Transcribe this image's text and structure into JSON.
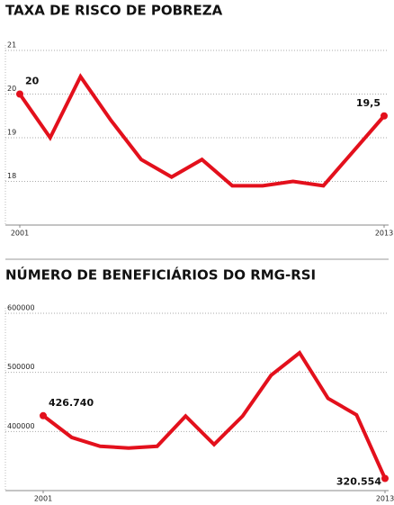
{
  "chart_data": [
    {
      "type": "line",
      "title": "TAXA DE RISCO DE POBREZA",
      "x": [
        2001,
        2002,
        2003,
        2004,
        2005,
        2006,
        2007,
        2008,
        2009,
        2010,
        2011,
        2012,
        2013
      ],
      "series": [
        {
          "name": null,
          "color": "#e3101c",
          "values": [
            20,
            19,
            20.4,
            19.4,
            18.5,
            18.1,
            18.5,
            17.9,
            17.9,
            18.0,
            17.9,
            18.7,
            19.5
          ],
          "value_labels": [
            "20",
            null,
            null,
            null,
            null,
            null,
            null,
            null,
            null,
            null,
            null,
            null,
            "19,5"
          ]
        }
      ],
      "xlim": [
        2001,
        2013
      ],
      "xticks": [
        2001,
        2013
      ],
      "ylim": [
        17,
        21
      ],
      "yticks": [
        18,
        19,
        20,
        21
      ],
      "grid": true
    },
    {
      "type": "line",
      "title": "NÚMERO DE BENEFICIÁRIOS DO RMG-RSI",
      "x": [
        2001,
        2002,
        2003,
        2004,
        2005,
        2006,
        2007,
        2008,
        2009,
        2010,
        2011,
        2012,
        2013
      ],
      "series": [
        {
          "name": null,
          "color": "#e3101c",
          "values": [
            426740,
            390000,
            375000,
            372000,
            375000,
            426000,
            378000,
            426000,
            495000,
            533000,
            456000,
            428000,
            320554
          ],
          "value_labels": [
            "426.740",
            null,
            null,
            null,
            null,
            null,
            null,
            null,
            null,
            null,
            null,
            null,
            "320.554"
          ]
        }
      ],
      "xlim": [
        2001,
        2013
      ],
      "xticks": [
        2001,
        2013
      ],
      "ylim": [
        300000,
        600000
      ],
      "yticks": [
        400000,
        500000,
        600000
      ],
      "grid": true
    }
  ]
}
